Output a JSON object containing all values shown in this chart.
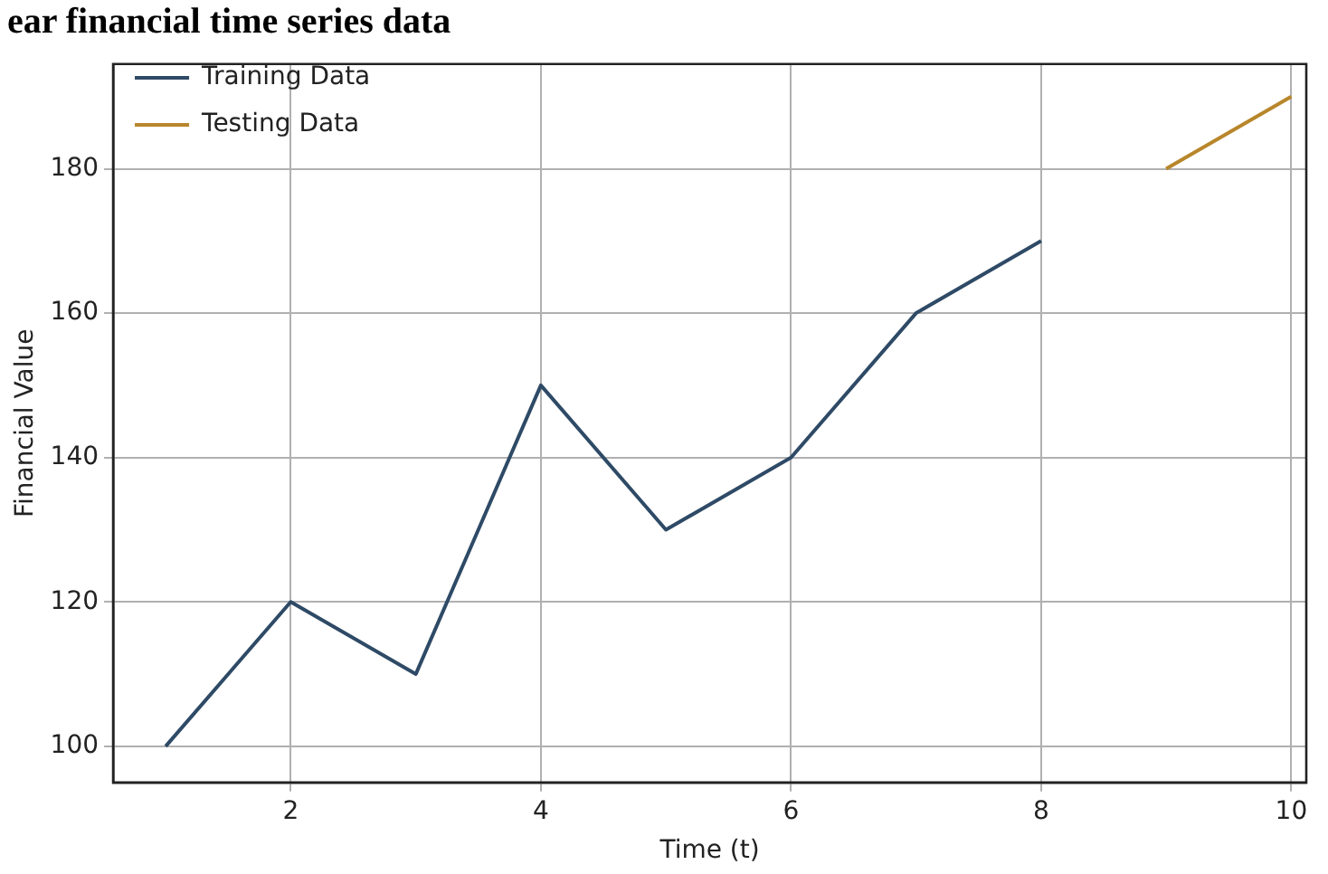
{
  "chart_data": {
    "type": "line",
    "title": "ear financial time series data",
    "xlabel": "Time (t)",
    "ylabel": "Financial Value",
    "series": [
      {
        "name": "Training Data",
        "color": "#2e4a66",
        "x": [
          1,
          2,
          3,
          4,
          5,
          6,
          7,
          8
        ],
        "values": [
          100,
          120,
          110,
          150,
          130,
          140,
          160,
          170
        ]
      },
      {
        "name": "Testing Data",
        "color": "#b8862b",
        "x": [
          9,
          10
        ],
        "values": [
          180,
          190
        ]
      }
    ],
    "xlim": [
      0.58,
      10.12
    ],
    "ylim": [
      95,
      194.5
    ],
    "xticks": [
      2,
      4,
      6,
      8,
      10
    ],
    "yticks": [
      100,
      120,
      140,
      160,
      180
    ],
    "grid": true,
    "legend": "top left",
    "marker": "none",
    "line_style": "solid"
  }
}
